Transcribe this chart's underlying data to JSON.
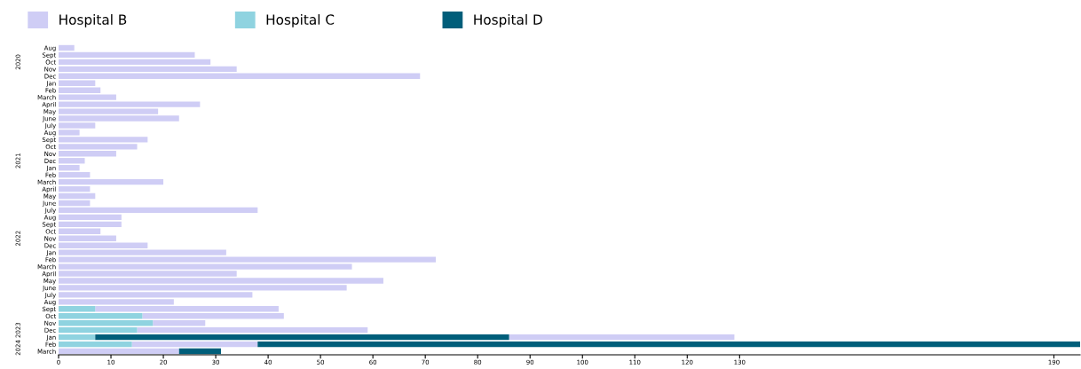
{
  "chart_data": {
    "type": "bar",
    "orientation": "horizontal",
    "legend": "top left",
    "grid": false,
    "categories": [
      "Aug",
      "Sept",
      "Oct",
      "Nov",
      "Dec",
      "Jan",
      "Feb",
      "March",
      "April",
      "May",
      "June",
      "July",
      "Aug",
      "Sept",
      "Oct",
      "Nov",
      "Dec",
      "Jan",
      "Feb",
      "March",
      "April",
      "May",
      "June",
      "July",
      "Aug",
      "Sept",
      "Oct",
      "Nov",
      "Dec",
      "Jan",
      "Feb",
      "March",
      "April",
      "May",
      "June",
      "July",
      "Aug",
      "Sept",
      "Oct",
      "Nov",
      "Dec",
      "Jan",
      "Feb",
      "March"
    ],
    "series": [
      {
        "name": "Hospital B",
        "color": "#cfcdf5",
        "values": [
          3,
          26,
          29,
          34,
          69,
          7,
          8,
          11,
          27,
          19,
          23,
          7,
          4,
          17,
          15,
          11,
          5,
          4,
          6,
          20,
          6,
          7,
          6,
          38,
          12,
          12,
          8,
          11,
          17,
          32,
          72,
          56,
          34,
          62,
          55,
          37,
          22,
          35,
          27,
          10,
          44,
          43,
          24,
          23
        ],
        "base": [
          0,
          0,
          0,
          0,
          0,
          0,
          0,
          0,
          0,
          0,
          0,
          0,
          0,
          0,
          0,
          0,
          0,
          0,
          0,
          0,
          0,
          0,
          0,
          0,
          0,
          0,
          0,
          0,
          0,
          0,
          0,
          0,
          0,
          0,
          0,
          0,
          0,
          7,
          16,
          18,
          15,
          86,
          14,
          0
        ]
      },
      {
        "name": "Hospital C",
        "color": "#8fd3e0",
        "values": [
          null,
          null,
          null,
          null,
          null,
          null,
          null,
          null,
          null,
          null,
          null,
          null,
          null,
          null,
          null,
          null,
          null,
          null,
          null,
          null,
          null,
          null,
          null,
          null,
          null,
          null,
          null,
          null,
          null,
          null,
          null,
          null,
          null,
          null,
          null,
          null,
          null,
          7,
          16,
          18,
          15,
          7,
          14,
          null
        ],
        "base": [
          null,
          null,
          null,
          null,
          null,
          null,
          null,
          null,
          null,
          null,
          null,
          null,
          null,
          null,
          null,
          null,
          null,
          null,
          null,
          null,
          null,
          null,
          null,
          null,
          null,
          null,
          null,
          null,
          null,
          null,
          null,
          null,
          null,
          null,
          null,
          null,
          null,
          0,
          0,
          0,
          0,
          0,
          0,
          null
        ]
      },
      {
        "name": "Hospital D",
        "color": "#005e7a",
        "values": [
          null,
          null,
          null,
          null,
          null,
          null,
          null,
          null,
          null,
          null,
          null,
          null,
          null,
          null,
          null,
          null,
          null,
          null,
          null,
          null,
          null,
          null,
          null,
          null,
          null,
          null,
          null,
          null,
          null,
          null,
          null,
          null,
          null,
          null,
          null,
          null,
          null,
          null,
          null,
          null,
          null,
          79,
          157,
          8
        ],
        "base": [
          null,
          null,
          null,
          null,
          null,
          null,
          null,
          null,
          null,
          null,
          null,
          null,
          null,
          null,
          null,
          null,
          null,
          null,
          null,
          null,
          null,
          null,
          null,
          null,
          null,
          null,
          null,
          null,
          null,
          null,
          null,
          null,
          null,
          null,
          null,
          null,
          null,
          null,
          null,
          null,
          null,
          7,
          38,
          23
        ]
      }
    ],
    "xlim": [
      0,
      195
    ],
    "xticks": [
      0,
      10,
      20,
      30,
      40,
      50,
      60,
      70,
      80,
      90,
      100,
      110,
      120,
      130,
      190
    ],
    "annotations": [
      "2020",
      "2021",
      "2022",
      "2023",
      "2024"
    ]
  }
}
